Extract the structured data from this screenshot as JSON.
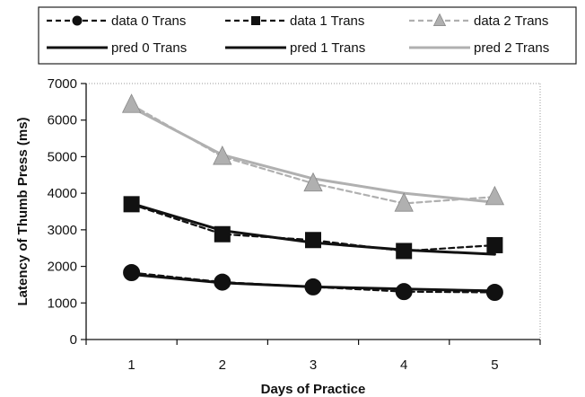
{
  "chart_data": {
    "type": "line",
    "title": "",
    "xlabel": "Days of Practice",
    "ylabel": "Latency of Thumb Press (ms)",
    "x": [
      1,
      2,
      3,
      4,
      5
    ],
    "xlim": [
      0.5,
      5.5
    ],
    "ylim": [
      0,
      7000
    ],
    "yticks": [
      0,
      1000,
      2000,
      3000,
      4000,
      5000,
      6000,
      7000
    ],
    "grid": false,
    "legend_position": "top",
    "series": [
      {
        "name": "data 0 Trans",
        "values": [
          1830,
          1570,
          1440,
          1310,
          1290
        ],
        "color": "#111111",
        "line": "dashed",
        "marker": "circle"
      },
      {
        "name": "data 1 Trans",
        "values": [
          3700,
          2880,
          2720,
          2420,
          2580
        ],
        "color": "#111111",
        "line": "dashed",
        "marker": "square"
      },
      {
        "name": "data 2 Trans",
        "values": [
          6420,
          5000,
          4270,
          3720,
          3900
        ],
        "color": "#b0b0b0",
        "line": "dashed",
        "marker": "triangle"
      },
      {
        "name": "pred 0 Trans",
        "values": [
          1780,
          1550,
          1440,
          1380,
          1330
        ],
        "color": "#111111",
        "line": "solid",
        "marker": "none"
      },
      {
        "name": "pred 1 Trans",
        "values": [
          3720,
          2980,
          2650,
          2450,
          2330
        ],
        "color": "#111111",
        "line": "solid",
        "marker": "none"
      },
      {
        "name": "pred 2 Trans",
        "values": [
          6350,
          5050,
          4400,
          4000,
          3750
        ],
        "color": "#b0b0b0",
        "line": "solid",
        "marker": "none"
      }
    ]
  }
}
